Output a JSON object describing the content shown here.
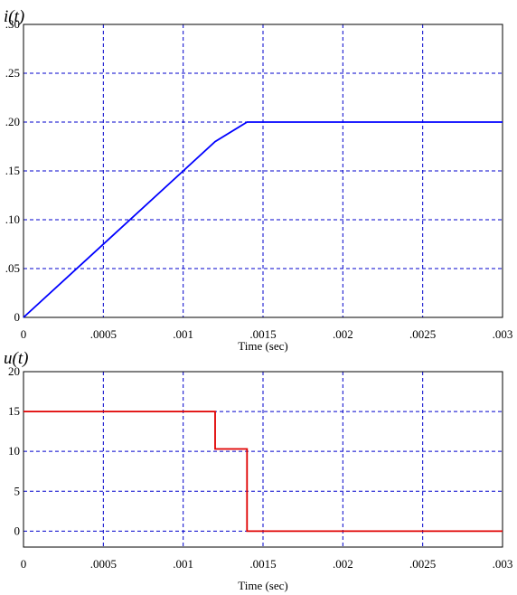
{
  "chart_data": [
    {
      "type": "line",
      "title": "i(t)",
      "xlabel": "Time (sec)",
      "ylabel": "",
      "xlim": [
        0,
        0.003
      ],
      "ylim": [
        0,
        0.3
      ],
      "grid": true,
      "xticks": [
        "0",
        ".0005",
        ".001",
        ".0015",
        ".002",
        ".0025",
        ".003"
      ],
      "yticks": [
        "0",
        ".05",
        ".10",
        ".15",
        ".20",
        ".25",
        ".30"
      ],
      "series": [
        {
          "color": "#0000ff",
          "x": [
            0,
            0.001,
            0.0012,
            0.0014,
            0.003
          ],
          "y": [
            0,
            0.15,
            0.18,
            0.2,
            0.2
          ]
        }
      ]
    },
    {
      "type": "line",
      "title": "u(t)",
      "xlabel": "Time (sec)",
      "ylabel": "",
      "xlim": [
        0,
        0.003
      ],
      "ylim": [
        -2,
        20
      ],
      "grid": true,
      "xticks": [
        "0",
        ".0005",
        ".001",
        ".0015",
        ".002",
        ".0025",
        ".003"
      ],
      "yticks": [
        "0",
        "5",
        "10",
        "15",
        "20"
      ],
      "series": [
        {
          "color": "#e00000",
          "x": [
            0,
            0.0012,
            0.0012,
            0.0014,
            0.0014,
            0.003
          ],
          "y": [
            15,
            15,
            10.3,
            10.3,
            0,
            0
          ]
        }
      ]
    }
  ],
  "colors": {
    "grid": "#0000cc",
    "frame": "#000000"
  }
}
